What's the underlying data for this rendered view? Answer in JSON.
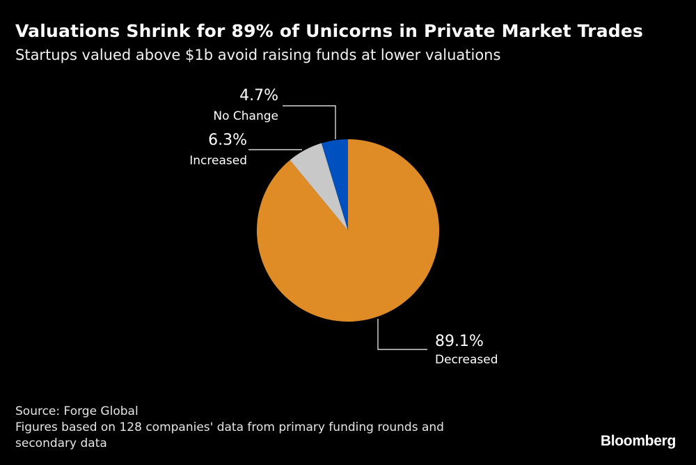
{
  "title": "Valuations Shrink for 89% of Unicorns in Private Market Trades",
  "subtitle": "Startups valued above $1b avoid raising funds at lower valuations",
  "chart_data": {
    "type": "pie",
    "title": "Valuations Shrink for 89% of Unicorns in Private Market Trades",
    "subtitle": "Startups valued above $1b avoid raising funds at lower valuations",
    "start_angle_deg": 0,
    "direction": "clockwise",
    "slices": [
      {
        "label": "Decreased",
        "value": 89.1,
        "value_label": "89.1%",
        "color": "#e08c26"
      },
      {
        "label": "Increased",
        "value": 6.3,
        "value_label": "6.3%",
        "color": "#c8c8c8"
      },
      {
        "label": "No Change",
        "value": 4.7,
        "value_label": "4.7%",
        "color": "#0050c0"
      }
    ]
  },
  "footer": {
    "source": "Source: Forge Global",
    "note_line1": "Figures based on 128 companies' data from primary funding rounds and",
    "note_line2": "secondary data",
    "brand": "Bloomberg"
  }
}
